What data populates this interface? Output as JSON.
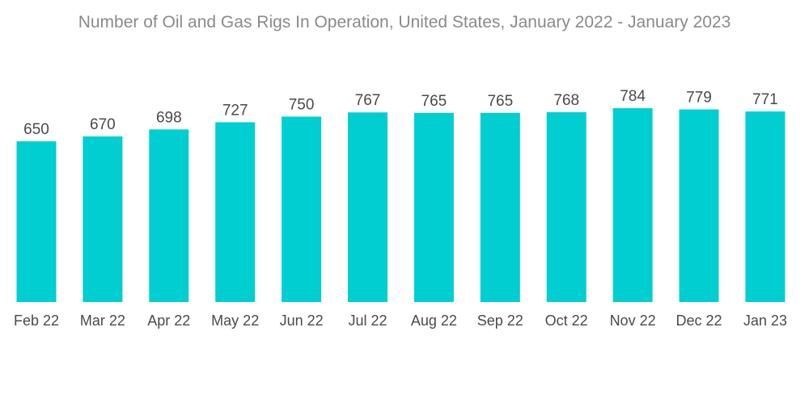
{
  "chart_data": {
    "type": "bar",
    "title": "Number of Oil and Gas Rigs In Operation, United States, January 2022 - January 2023",
    "categories": [
      "Feb 22",
      "Mar 22",
      "Apr 22",
      "May 22",
      "Jun 22",
      "Jul 22",
      "Aug 22",
      "Sep 22",
      "Oct 22",
      "Nov 22",
      "Dec 22",
      "Jan 23"
    ],
    "values": [
      650,
      670,
      698,
      727,
      750,
      767,
      765,
      765,
      768,
      784,
      779,
      771
    ],
    "xlabel": "",
    "ylabel": "",
    "ylim": [
      0,
      800
    ],
    "grid": false,
    "legend": "none",
    "bar_color": "#00ced1",
    "text_color": "#4a4a4a",
    "title_color": "#8a8a8a"
  }
}
